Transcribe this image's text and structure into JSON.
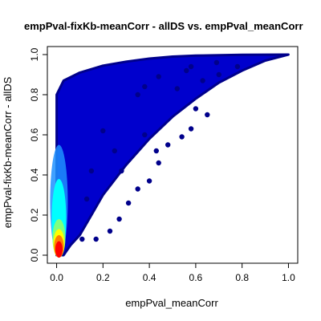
{
  "chart_data": {
    "type": "scatter",
    "title": "empPval-fixKb-meanCorr - allDS vs. empPval_meanCorr",
    "xlabel": "empPval_meanCorr",
    "ylabel": "empPval-fixKb-meanCorr - allDS",
    "xlim": [
      -0.04,
      1.04
    ],
    "ylim": [
      -0.04,
      1.04
    ],
    "x_ticks": [
      0.0,
      0.2,
      0.4,
      0.6,
      0.8,
      1.0
    ],
    "y_ticks": [
      0.0,
      0.2,
      0.4,
      0.6,
      0.8,
      1.0
    ],
    "x_tick_labels": [
      "0.0",
      "0.2",
      "0.4",
      "0.6",
      "0.8",
      "1.0"
    ],
    "y_tick_labels": [
      "0.0",
      "0.2",
      "0.4",
      "0.6",
      "0.8",
      "1.0"
    ],
    "grid": false,
    "legend": "none",
    "density_colors": [
      "#00008B",
      "#0000CD",
      "#1E90FF",
      "#00FFFF",
      "#7FFF7F",
      "#FFFF00",
      "#FF7F00",
      "#FF0000"
    ],
    "dense_hotspot": {
      "x": 0.01,
      "y": 0.05
    },
    "cloud_upper_boundary": [
      [
        0.0,
        0.8
      ],
      [
        0.03,
        0.87
      ],
      [
        0.1,
        0.91
      ],
      [
        0.2,
        0.945
      ],
      [
        0.3,
        0.965
      ],
      [
        0.4,
        0.98
      ],
      [
        0.5,
        0.99
      ],
      [
        0.6,
        0.995
      ],
      [
        0.8,
        0.999
      ],
      [
        1.0,
        1.0
      ]
    ],
    "cloud_lower_boundary": [
      [
        0.03,
        0.0
      ],
      [
        0.06,
        0.05
      ],
      [
        0.1,
        0.1
      ],
      [
        0.15,
        0.2
      ],
      [
        0.2,
        0.3
      ],
      [
        0.3,
        0.45
      ],
      [
        0.4,
        0.58
      ],
      [
        0.5,
        0.69
      ],
      [
        0.6,
        0.78
      ],
      [
        0.7,
        0.86
      ],
      [
        0.8,
        0.92
      ],
      [
        0.9,
        0.97
      ],
      [
        1.0,
        1.0
      ]
    ],
    "outlier_points": [
      [
        0.17,
        0.08
      ],
      [
        0.23,
        0.12
      ],
      [
        0.27,
        0.18
      ],
      [
        0.31,
        0.26
      ],
      [
        0.35,
        0.33
      ],
      [
        0.4,
        0.37
      ],
      [
        0.28,
        0.42
      ],
      [
        0.44,
        0.46
      ],
      [
        0.38,
        0.6
      ],
      [
        0.43,
        0.52
      ],
      [
        0.48,
        0.55
      ],
      [
        0.54,
        0.59
      ],
      [
        0.58,
        0.63
      ],
      [
        0.6,
        0.73
      ],
      [
        0.65,
        0.7
      ],
      [
        0.35,
        0.8
      ],
      [
        0.38,
        0.84
      ],
      [
        0.52,
        0.83
      ],
      [
        0.63,
        0.87
      ],
      [
        0.7,
        0.9
      ],
      [
        0.44,
        0.89
      ],
      [
        0.56,
        0.92
      ],
      [
        0.78,
        0.94
      ],
      [
        0.69,
        0.96
      ],
      [
        0.58,
        0.94
      ],
      [
        0.2,
        0.62
      ],
      [
        0.25,
        0.52
      ],
      [
        0.15,
        0.42
      ],
      [
        0.11,
        0.08
      ],
      [
        0.13,
        0.28
      ]
    ]
  }
}
